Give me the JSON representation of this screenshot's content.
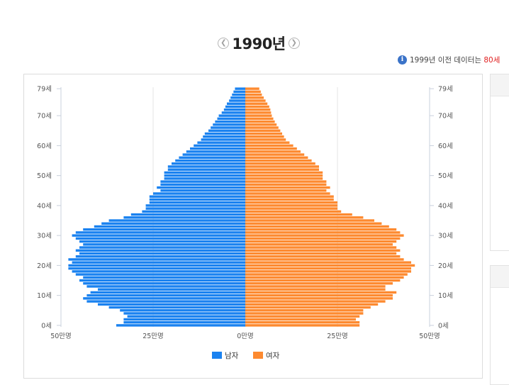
{
  "year_nav": {
    "prev_icon": "chevron-left-circle-icon",
    "year": "1990년",
    "next_icon": "chevron-right-circle-icon"
  },
  "notice": {
    "icon": "info-icon",
    "text": "1999년 이전 데이터는 ",
    "highlight": "80세"
  },
  "chart_data": {
    "type": "bar",
    "orientation": "horizontal-population-pyramid",
    "unit": "persons",
    "categories": [
      "0세",
      "1세",
      "2세",
      "3세",
      "4세",
      "5세",
      "6세",
      "7세",
      "8세",
      "9세",
      "10세",
      "11세",
      "12세",
      "13세",
      "14세",
      "15세",
      "16세",
      "17세",
      "18세",
      "19세",
      "20세",
      "21세",
      "22세",
      "23세",
      "24세",
      "25세",
      "26세",
      "27세",
      "28세",
      "29세",
      "30세",
      "31세",
      "32세",
      "33세",
      "34세",
      "35세",
      "36세",
      "37세",
      "38세",
      "39세",
      "40세",
      "41세",
      "42세",
      "43세",
      "44세",
      "45세",
      "46세",
      "47세",
      "48세",
      "49세",
      "50세",
      "51세",
      "52세",
      "53세",
      "54세",
      "55세",
      "56세",
      "57세",
      "58세",
      "59세",
      "60세",
      "61세",
      "62세",
      "63세",
      "64세",
      "65세",
      "66세",
      "67세",
      "68세",
      "69세",
      "70세",
      "71세",
      "72세",
      "73세",
      "74세",
      "75세",
      "76세",
      "77세",
      "78세",
      "79세"
    ],
    "series": [
      {
        "name": "남자",
        "color": "#1a82f0",
        "values": [
          350000,
          330000,
          330000,
          320000,
          330000,
          340000,
          370000,
          400000,
          430000,
          440000,
          430000,
          420000,
          400000,
          430000,
          440000,
          450000,
          440000,
          460000,
          470000,
          480000,
          480000,
          470000,
          480000,
          460000,
          450000,
          460000,
          450000,
          440000,
          450000,
          460000,
          470000,
          460000,
          440000,
          410000,
          390000,
          370000,
          330000,
          310000,
          280000,
          270000,
          270000,
          260000,
          260000,
          260000,
          250000,
          230000,
          240000,
          230000,
          230000,
          220000,
          220000,
          220000,
          210000,
          210000,
          200000,
          190000,
          180000,
          170000,
          160000,
          150000,
          140000,
          130000,
          120000,
          115000,
          110000,
          100000,
          94000,
          88000,
          82000,
          76000,
          72000,
          64000,
          58000,
          54000,
          50000,
          44000,
          40000,
          36000,
          32000,
          28000
        ]
      },
      {
        "name": "여자",
        "color": "#fd8a30",
        "values": [
          310000,
          310000,
          300000,
          310000,
          320000,
          320000,
          340000,
          360000,
          380000,
          400000,
          400000,
          410000,
          380000,
          380000,
          400000,
          420000,
          430000,
          440000,
          450000,
          450000,
          460000,
          450000,
          430000,
          420000,
          410000,
          420000,
          410000,
          400000,
          410000,
          420000,
          430000,
          420000,
          410000,
          390000,
          370000,
          350000,
          320000,
          290000,
          260000,
          250000,
          250000,
          250000,
          240000,
          240000,
          230000,
          220000,
          230000,
          220000,
          220000,
          210000,
          210000,
          210000,
          200000,
          200000,
          190000,
          180000,
          170000,
          160000,
          150000,
          140000,
          130000,
          120000,
          110000,
          105000,
          100000,
          95000,
          90000,
          85000,
          80000,
          76000,
          72000,
          70000,
          68000,
          65000,
          60000,
          55000,
          50000,
          45000,
          42000,
          38000
        ]
      }
    ],
    "xlim": [
      -500000,
      500000
    ],
    "x_ticks": [
      {
        "value": -500000,
        "label": "50만명"
      },
      {
        "value": -250000,
        "label": "25만명"
      },
      {
        "value": 0,
        "label": "0만명"
      },
      {
        "value": 250000,
        "label": "25만명"
      },
      {
        "value": 500000,
        "label": "50만명"
      }
    ],
    "y_ticks": [
      {
        "age": 0,
        "label": "0세"
      },
      {
        "age": 10,
        "label": "10세"
      },
      {
        "age": 20,
        "label": "20세"
      },
      {
        "age": 30,
        "label": "30세"
      },
      {
        "age": 40,
        "label": "40세"
      },
      {
        "age": 50,
        "label": "50세"
      },
      {
        "age": 60,
        "label": "60세"
      },
      {
        "age": 70,
        "label": "70세"
      },
      {
        "age": 79,
        "label": "79세"
      }
    ],
    "legend": [
      {
        "label": "남자",
        "color": "#1a82f0"
      },
      {
        "label": "여자",
        "color": "#fd8a30"
      }
    ],
    "legend_position": "bottom-center",
    "grid": true
  }
}
